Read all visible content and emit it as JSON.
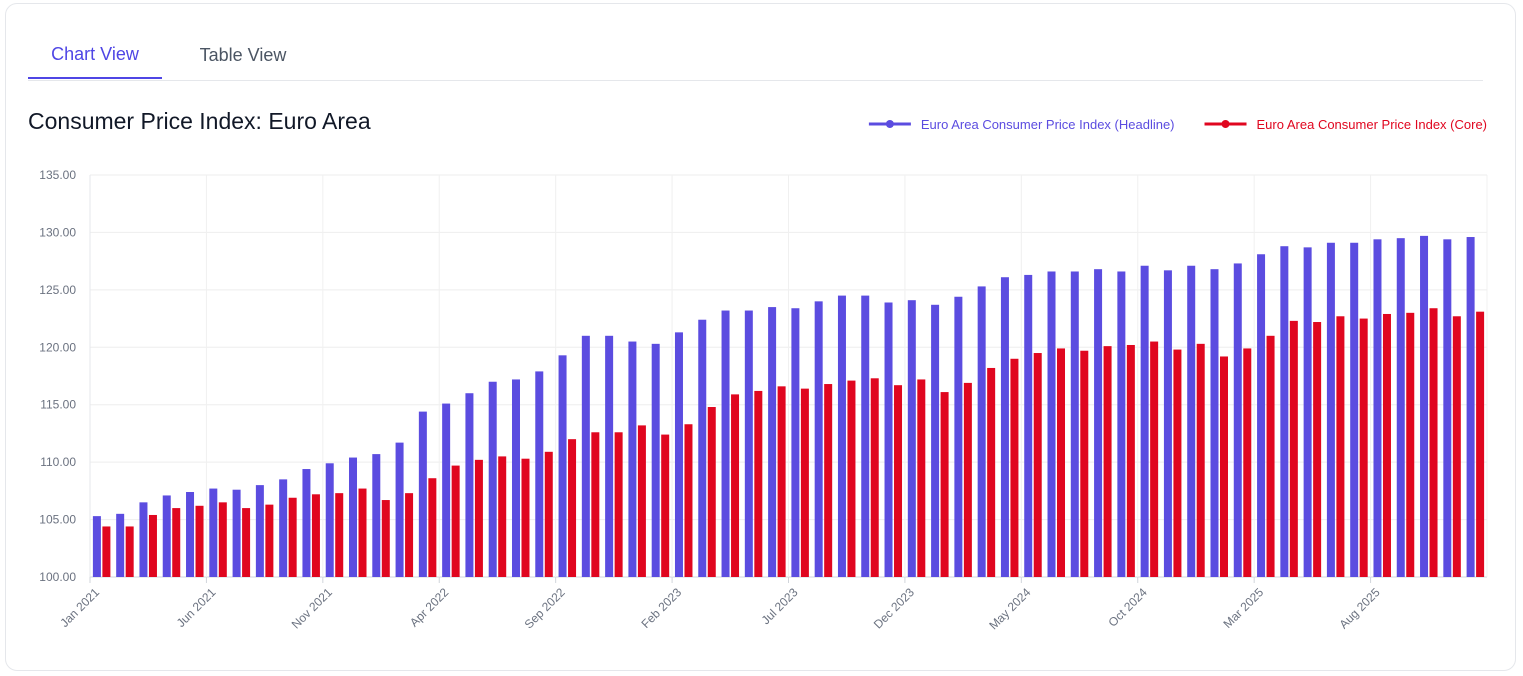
{
  "tabs": [
    {
      "label": "Chart View",
      "active": true
    },
    {
      "label": "Table View",
      "active": false
    }
  ],
  "chart_data": {
    "type": "bar",
    "title": "Consumer Price Index: Euro Area",
    "xlabel": "",
    "ylabel": "",
    "ylim": [
      100,
      135
    ],
    "yticks": [
      "100.00",
      "105.00",
      "110.00",
      "115.00",
      "120.00",
      "125.00",
      "130.00",
      "135.00"
    ],
    "grid": true,
    "legend_position": "top-right",
    "x_tick_labels": [
      "Jan 2021",
      "Jun 2021",
      "Nov 2021",
      "Apr 2022",
      "Sep 2022",
      "Feb 2023",
      "Jul 2023",
      "Dec 2023",
      "May 2024",
      "Oct 2024",
      "Mar 2025",
      "Aug 2025"
    ],
    "series": [
      {
        "name": "Euro Area Consumer Price Index (Headline)",
        "color": "#5b4ce0",
        "values": [
          105.3,
          105.5,
          106.5,
          107.1,
          107.4,
          107.7,
          107.6,
          108.0,
          108.5,
          109.4,
          109.9,
          110.4,
          110.7,
          111.7,
          114.4,
          115.1,
          116.0,
          117.0,
          117.2,
          117.9,
          119.3,
          121.0,
          121.0,
          120.5,
          120.3,
          121.3,
          122.4,
          123.2,
          123.2,
          123.5,
          123.4,
          124.0,
          124.5,
          124.5,
          123.9,
          124.1,
          123.7,
          124.4,
          125.3,
          126.1,
          126.3,
          126.6,
          126.6,
          126.8,
          126.6,
          127.1,
          126.7,
          127.1,
          126.8,
          127.3,
          128.1,
          128.8,
          128.7,
          129.1,
          129.1,
          129.4,
          129.5,
          129.7,
          129.4,
          129.6
        ]
      },
      {
        "name": "Euro Area Consumer Price Index (Core)",
        "color": "#e0061f",
        "values": [
          104.4,
          104.4,
          105.4,
          106.0,
          106.2,
          106.5,
          106.0,
          106.3,
          106.9,
          107.2,
          107.3,
          107.7,
          106.7,
          107.3,
          108.6,
          109.7,
          110.2,
          110.5,
          110.3,
          110.9,
          112.0,
          112.6,
          112.6,
          113.2,
          112.4,
          113.3,
          114.8,
          115.9,
          116.2,
          116.6,
          116.4,
          116.8,
          117.1,
          117.3,
          116.7,
          117.2,
          116.1,
          116.9,
          118.2,
          119.0,
          119.5,
          119.9,
          119.7,
          120.1,
          120.2,
          120.5,
          119.8,
          120.3,
          119.2,
          119.9,
          121.0,
          122.3,
          122.2,
          122.7,
          122.5,
          122.9,
          123.0,
          123.4,
          122.7,
          123.1
        ]
      }
    ]
  }
}
